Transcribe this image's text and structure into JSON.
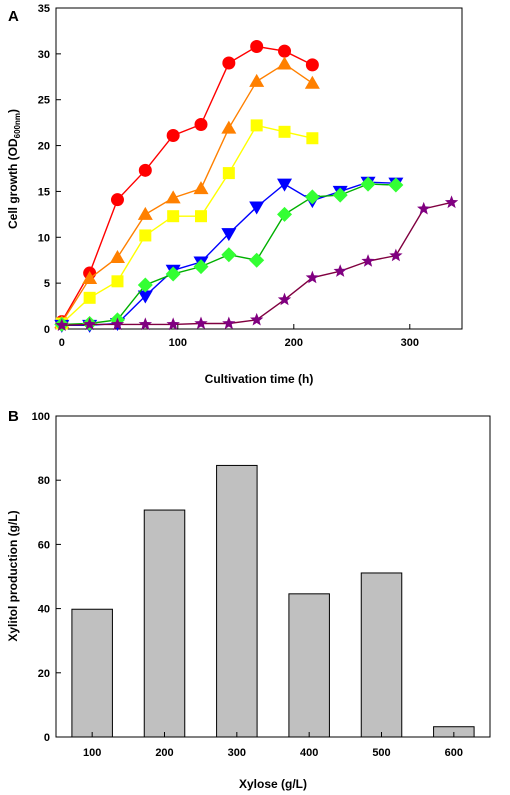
{
  "figure": {
    "panel_a_label": "A",
    "panel_b_label": "B"
  },
  "chart_data": [
    {
      "type": "line",
      "panel": "A",
      "xlabel": "Cultivation time (h)",
      "ylabel": "Cell growth (OD",
      "ylabel_subscript": "600nm",
      "ylabel_suffix": ")",
      "xlim": [
        -5,
        345
      ],
      "ylim": [
        0,
        35
      ],
      "xticks": [
        "0",
        "100",
        "200",
        "300"
      ],
      "yticks": [
        "0",
        "5",
        "10",
        "15",
        "20",
        "25",
        "30",
        "35"
      ],
      "grid": false,
      "legend": "none",
      "series": [
        {
          "color": "#ff0000",
          "line_color": "#ff0000",
          "marker": "circle",
          "x": [
            0,
            24,
            48,
            72,
            96,
            120,
            144,
            168,
            192,
            216
          ],
          "y": [
            0.8,
            6.1,
            14.1,
            17.3,
            21.1,
            22.3,
            29.0,
            30.8,
            30.3,
            28.8
          ]
        },
        {
          "color": "#ff8000",
          "line_color": "#ff8000",
          "marker": "triangle-up",
          "x": [
            0,
            24,
            48,
            72,
            96,
            120,
            144,
            168,
            192,
            216
          ],
          "y": [
            0.7,
            5.5,
            7.8,
            12.5,
            14.3,
            15.3,
            21.9,
            27.0,
            28.9,
            26.8
          ]
        },
        {
          "color": "#ffff00",
          "line_color": "#ffff00",
          "marker": "square",
          "x": [
            0,
            24,
            48,
            72,
            96,
            120,
            144,
            168,
            192,
            216
          ],
          "y": [
            0.6,
            3.4,
            5.2,
            10.2,
            12.3,
            12.3,
            17.0,
            22.2,
            21.5,
            20.8
          ]
        },
        {
          "color": "#0000ff",
          "line_color": "#0000ff",
          "marker": "triangle-down",
          "x": [
            0,
            24,
            48,
            72,
            96,
            120,
            144,
            168,
            192,
            216,
            240,
            264,
            288
          ],
          "y": [
            0.4,
            0.4,
            0.6,
            3.6,
            6.4,
            7.3,
            10.4,
            13.3,
            15.8,
            14.0,
            15.0,
            16.0,
            15.9
          ]
        },
        {
          "color": "#33ff33",
          "line_color": "#00b000",
          "marker": "diamond",
          "x": [
            0,
            24,
            48,
            72,
            96,
            120,
            144,
            168,
            192,
            216,
            240,
            264,
            288
          ],
          "y": [
            0.5,
            0.6,
            1.0,
            4.8,
            6.0,
            6.8,
            8.1,
            7.5,
            12.5,
            14.4,
            14.6,
            15.8,
            15.7
          ]
        },
        {
          "color": "#800080",
          "line_color": "#800040",
          "marker": "star",
          "x": [
            0,
            24,
            48,
            72,
            96,
            120,
            144,
            168,
            192,
            216,
            240,
            264,
            288,
            312,
            336
          ],
          "y": [
            0.4,
            0.5,
            0.5,
            0.5,
            0.5,
            0.6,
            0.6,
            1.0,
            3.2,
            5.6,
            6.3,
            7.4,
            8.0,
            13.1,
            13.8
          ]
        }
      ]
    },
    {
      "type": "bar",
      "panel": "B",
      "xlabel": "Xylose (g/L)",
      "ylabel": "Xylitol production (g/L)",
      "categories": [
        "100",
        "200",
        "300",
        "400",
        "500",
        "600"
      ],
      "values": [
        39.8,
        70.7,
        84.6,
        44.6,
        51.1,
        3.2
      ],
      "ylim": [
        0,
        100
      ],
      "yticks": [
        "0",
        "20",
        "40",
        "60",
        "80",
        "100"
      ],
      "bar_color": "#c0c0c0",
      "grid": false,
      "legend": "none"
    }
  ]
}
